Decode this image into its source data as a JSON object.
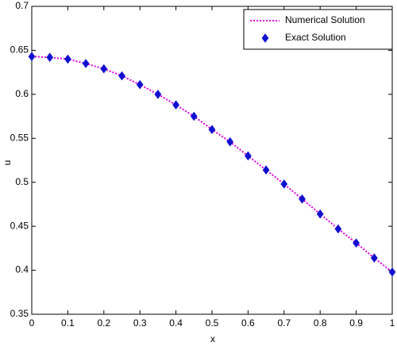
{
  "chart_data": {
    "type": "line",
    "xlabel": "x",
    "ylabel": "u",
    "x": [
      0,
      0.05,
      0.1,
      0.15,
      0.2,
      0.25,
      0.3,
      0.35,
      0.4,
      0.45,
      0.5,
      0.55,
      0.6,
      0.65,
      0.7,
      0.75,
      0.8,
      0.85,
      0.9,
      0.95,
      1
    ],
    "series": [
      {
        "name": "Numerical Solution",
        "color": "#e000e0",
        "style": "dotted",
        "values": [
          0.643,
          0.642,
          0.64,
          0.635,
          0.629,
          0.621,
          0.611,
          0.6,
          0.588,
          0.575,
          0.56,
          0.546,
          0.53,
          0.514,
          0.498,
          0.481,
          0.464,
          0.447,
          0.431,
          0.414,
          0.398
        ]
      },
      {
        "name": "Exact Solution",
        "color": "#1010d0",
        "style": "diamond",
        "values": [
          0.643,
          0.642,
          0.64,
          0.635,
          0.629,
          0.621,
          0.611,
          0.6,
          0.588,
          0.575,
          0.56,
          0.546,
          0.53,
          0.514,
          0.498,
          0.481,
          0.464,
          0.447,
          0.431,
          0.414,
          0.398
        ]
      }
    ],
    "xlim": [
      0,
      1
    ],
    "xticks": [
      0,
      0.1,
      0.2,
      0.3,
      0.4,
      0.5,
      0.6,
      0.7,
      0.8,
      0.9,
      1
    ],
    "ylim": [
      0.35,
      0.7
    ],
    "yticks": [
      0.35,
      0.4,
      0.45,
      0.5,
      0.55,
      0.6,
      0.65,
      0.7
    ],
    "grid": false,
    "legend": "upper-right"
  }
}
